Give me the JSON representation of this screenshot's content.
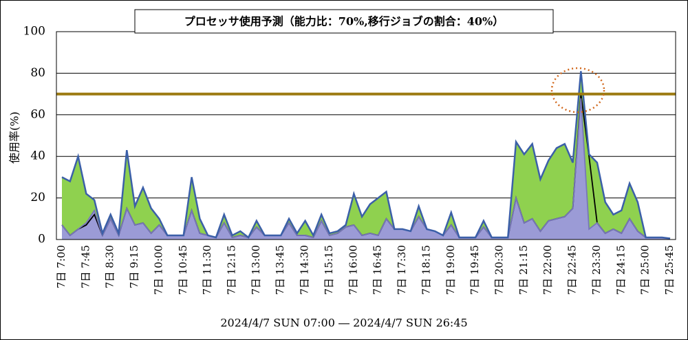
{
  "chart_data": {
    "type": "area",
    "title": "プロセッサ使用予測（能力比：70%,移行ジョブの割合：40%）",
    "ylabel": "使用率(%)",
    "xlabel": "2024/4/7 SUN 07:00 ― 2024/4/7 SUN 26:45",
    "categories": [
      "7日 7:00",
      null,
      null,
      "7日 7:45",
      null,
      null,
      "7日 8:30",
      null,
      null,
      "7日 9:15",
      null,
      null,
      "7日 10:00",
      null,
      null,
      "7日 10:45",
      null,
      null,
      "7日 11:30",
      null,
      null,
      "7日 12:15",
      null,
      null,
      "7日 13:00",
      null,
      null,
      "7日 13:45",
      null,
      null,
      "7日 14:30",
      null,
      null,
      "7日 15:15",
      null,
      null,
      "7日 16:00",
      null,
      null,
      "7日 16:45",
      null,
      null,
      "7日 17:30",
      null,
      null,
      "7日 18:15",
      null,
      null,
      "7日 19:00",
      null,
      null,
      "7日 19:45",
      null,
      null,
      "7日 20:30",
      null,
      null,
      "7日 21:15",
      null,
      null,
      "7日 22:00",
      null,
      null,
      "7日 22:45",
      null,
      null,
      "7日 23:30",
      null,
      null,
      "7日 24:15",
      null,
      null,
      "7日 25:00",
      null,
      null,
      "7日 25:45"
    ],
    "series": [
      {
        "color": "#8fd14f",
        "line_color": "#3b5fa8",
        "fill": true,
        "values": [
          30,
          28,
          40,
          22,
          19,
          3,
          12,
          3,
          43,
          16,
          25,
          15,
          10,
          2,
          2,
          2,
          30,
          10,
          2,
          1,
          12,
          2,
          4,
          1,
          9,
          2,
          2,
          2,
          10,
          3,
          9,
          2,
          12,
          3,
          4,
          7,
          22,
          11,
          17,
          20,
          23,
          5,
          5,
          4,
          16,
          5,
          4,
          2,
          13,
          1,
          1,
          1,
          9,
          1,
          1,
          1,
          47,
          41,
          46,
          29,
          38,
          44,
          46,
          37,
          81,
          41,
          37,
          18,
          12,
          14,
          27,
          18,
          1,
          1,
          1,
          0.5
        ]
      },
      {
        "color": "#9b9bd6",
        "line_color": "#7777b8",
        "fill": true,
        "values": [
          7,
          2,
          5,
          8,
          14,
          2,
          10,
          2,
          15,
          7,
          8,
          3,
          7,
          2,
          2,
          2,
          14,
          3,
          2,
          1,
          8,
          1,
          2,
          1,
          6,
          2,
          2,
          2,
          8,
          2,
          2,
          1,
          9,
          2,
          3,
          6,
          7,
          2,
          3,
          2,
          10,
          5,
          5,
          4,
          11,
          5,
          4,
          2,
          7,
          1,
          1,
          1,
          6,
          1,
          1,
          1,
          20,
          8,
          10,
          4,
          9,
          10,
          11,
          15,
          68,
          5,
          8,
          3,
          5,
          3,
          10,
          4,
          1,
          1,
          1,
          0.5
        ]
      },
      {
        "color": "#000000",
        "line_color": "#000000",
        "fill": false,
        "values": [
          7,
          2,
          5,
          7,
          12,
          2,
          10,
          2,
          15,
          7,
          8,
          3,
          7,
          2,
          2,
          2,
          14,
          3,
          2,
          1,
          8,
          1,
          2,
          1,
          6,
          2,
          2,
          2,
          8,
          2,
          2,
          1,
          9,
          2,
          3,
          6,
          7,
          2,
          3,
          2,
          10,
          5,
          5,
          4,
          11,
          5,
          4,
          2,
          7,
          1,
          1,
          1,
          6,
          1,
          1,
          1,
          20,
          8,
          10,
          4,
          9,
          10,
          11,
          15,
          70,
          40,
          8,
          3,
          5,
          3,
          10,
          4,
          1,
          1,
          1,
          0.5
        ]
      }
    ],
    "threshold": {
      "value": 70,
      "color": "#9c7a10"
    },
    "ylim": [
      0,
      100
    ],
    "yticks": [
      0,
      20,
      40,
      60,
      80,
      100
    ],
    "grid": true
  }
}
